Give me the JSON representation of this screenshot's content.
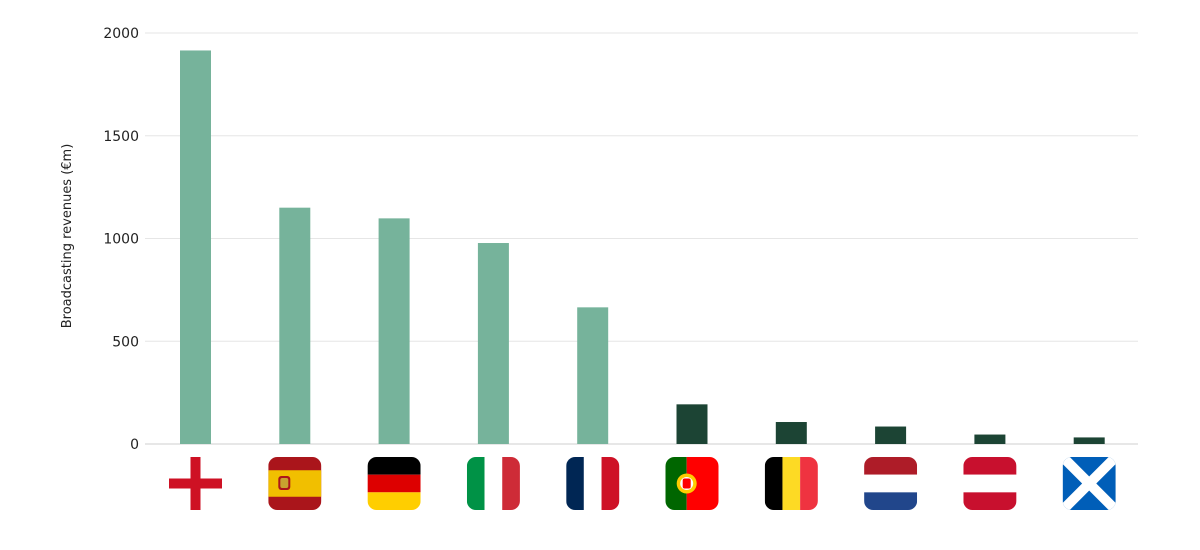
{
  "chart_data": {
    "type": "bar",
    "title": "",
    "xlabel": "",
    "ylabel": "Broadcasting revenues (€m)",
    "ylim": [
      0,
      2000
    ],
    "yticks": [
      0,
      500,
      1000,
      1500,
      2000
    ],
    "grid": true,
    "legend": "none",
    "categories": [
      "England",
      "Spain",
      "Germany",
      "Italy",
      "France",
      "Portugal",
      "Belgium",
      "Netherlands",
      "Austria",
      "Scotland"
    ],
    "category_icons": [
      "england-flag-icon",
      "spain-flag-icon",
      "germany-flag-icon",
      "italy-flag-icon",
      "france-flag-icon",
      "portugal-flag-icon",
      "belgium-flag-icon",
      "netherlands-flag-icon",
      "austria-flag-icon",
      "scotland-flag-icon"
    ],
    "values": [
      1915,
      1150,
      1098,
      978,
      665,
      193,
      107,
      85,
      46,
      32
    ],
    "bar_colors": [
      "#76b39b",
      "#76b39b",
      "#76b39b",
      "#76b39b",
      "#76b39b",
      "#1c4434",
      "#1c4434",
      "#1c4434",
      "#1c4434",
      "#1c4434"
    ]
  }
}
